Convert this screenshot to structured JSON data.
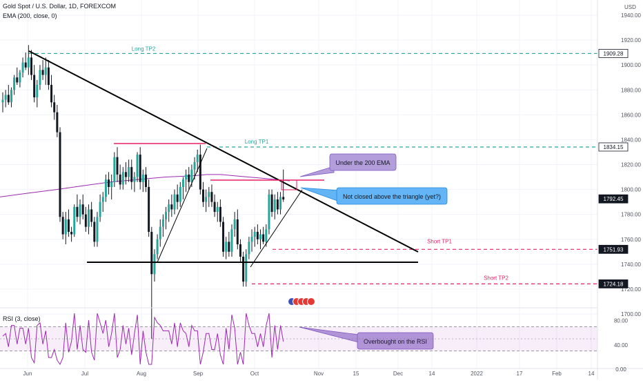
{
  "header": {
    "symbol": "Gold Spot / U.S. Dollar, 1D, FOREXCOM",
    "ema": "EMA (200, close, 0)",
    "rsi": "RSI (3, close)",
    "currency": "USD"
  },
  "colors": {
    "up": "#26a69a",
    "down": "#ef5350",
    "candle": "#131722",
    "ema": "#9c27b0",
    "long": "#26a69a",
    "short": "#e91e63",
    "resistance": "#e91e63",
    "callout_fill": "#b39ddb",
    "callout_blue": "#64b5f6",
    "price_badge": "#131722"
  },
  "chart_data": {
    "type": "candlestick",
    "title": "Gold Spot / U.S. Dollar, 1D, FOREXCOM",
    "price_axis": {
      "ticks": [
        "1940.00",
        "1920.00",
        "1900.00",
        "1880.00",
        "1860.00",
        "1840.00",
        "1820.00",
        "1800.00",
        "1780.00",
        "1760.00",
        "1740.00",
        "1720.00",
        "1700.00"
      ],
      "range": [
        1690,
        1945
      ]
    },
    "time_axis": {
      "labels": [
        "Jun",
        "Jul",
        "Aug",
        "Sep",
        "Oct",
        "Nov",
        "15",
        "Dec",
        "14",
        "2022",
        "17",
        "Feb",
        "14"
      ]
    },
    "price_badges": [
      {
        "label": "1909.28",
        "value": 1909.28,
        "style": "long"
      },
      {
        "label": "1834.15",
        "value": 1834.15,
        "style": "long"
      },
      {
        "label": "1792.45",
        "value": 1792.45,
        "style": "current"
      },
      {
        "label": "1751.93",
        "value": 1751.93,
        "style": "short"
      },
      {
        "label": "1724.18",
        "value": 1724.18,
        "style": "short"
      }
    ],
    "levels": [
      {
        "name": "Long TP2",
        "value": 1909.28
      },
      {
        "name": "Long TP1",
        "value": 1834.15
      },
      {
        "name": "Short TP1",
        "value": 1751.93
      },
      {
        "name": "Short TP2",
        "value": 1724.18
      }
    ],
    "annotations": [
      "Under the 200 EMA",
      "Not closed above the triangle (yet?)",
      "Overbought on the RSI"
    ],
    "rsi_axis": {
      "ticks": [
        "80.00",
        "40.00",
        "0.00"
      ],
      "range": [
        0,
        100
      ],
      "band": [
        30,
        70
      ]
    },
    "ohlc": [
      [
        1870,
        1878,
        1862,
        1872
      ],
      [
        1872,
        1880,
        1866,
        1876
      ],
      [
        1876,
        1884,
        1868,
        1870
      ],
      [
        1870,
        1882,
        1866,
        1880
      ],
      [
        1880,
        1892,
        1876,
        1890
      ],
      [
        1890,
        1898,
        1884,
        1886
      ],
      [
        1886,
        1896,
        1882,
        1894
      ],
      [
        1894,
        1906,
        1890,
        1902
      ],
      [
        1902,
        1910,
        1896,
        1898
      ],
      [
        1898,
        1916,
        1892,
        1906
      ],
      [
        1906,
        1912,
        1888,
        1892
      ],
      [
        1892,
        1900,
        1870,
        1874
      ],
      [
        1874,
        1888,
        1866,
        1884
      ],
      [
        1884,
        1900,
        1880,
        1896
      ],
      [
        1896,
        1904,
        1888,
        1892
      ],
      [
        1892,
        1906,
        1884,
        1898
      ],
      [
        1898,
        1904,
        1880,
        1884
      ],
      [
        1884,
        1892,
        1866,
        1870
      ],
      [
        1870,
        1876,
        1856,
        1862
      ],
      [
        1862,
        1868,
        1842,
        1846
      ],
      [
        1846,
        1850,
        1774,
        1778
      ],
      [
        1778,
        1782,
        1760,
        1764
      ],
      [
        1764,
        1782,
        1756,
        1776
      ],
      [
        1776,
        1784,
        1762,
        1766
      ],
      [
        1766,
        1770,
        1758,
        1764
      ],
      [
        1764,
        1788,
        1762,
        1786
      ],
      [
        1786,
        1796,
        1774,
        1778
      ],
      [
        1778,
        1792,
        1772,
        1788
      ],
      [
        1788,
        1796,
        1776,
        1780
      ],
      [
        1780,
        1786,
        1766,
        1770
      ],
      [
        1770,
        1788,
        1764,
        1784
      ],
      [
        1784,
        1790,
        1770,
        1774
      ],
      [
        1774,
        1778,
        1754,
        1758
      ],
      [
        1758,
        1782,
        1754,
        1778
      ],
      [
        1778,
        1796,
        1774,
        1790
      ],
      [
        1790,
        1798,
        1782,
        1794
      ],
      [
        1794,
        1812,
        1790,
        1808
      ],
      [
        1808,
        1814,
        1796,
        1802
      ],
      [
        1802,
        1812,
        1792,
        1806
      ],
      [
        1806,
        1830,
        1802,
        1826
      ],
      [
        1826,
        1834,
        1806,
        1812
      ],
      [
        1812,
        1820,
        1800,
        1804
      ],
      [
        1804,
        1818,
        1800,
        1814
      ],
      [
        1814,
        1822,
        1804,
        1810
      ],
      [
        1810,
        1824,
        1806,
        1818
      ],
      [
        1818,
        1824,
        1800,
        1806
      ],
      [
        1806,
        1814,
        1798,
        1810
      ],
      [
        1810,
        1830,
        1806,
        1828
      ],
      [
        1828,
        1834,
        1800,
        1806
      ],
      [
        1806,
        1816,
        1798,
        1812
      ],
      [
        1812,
        1818,
        1798,
        1802
      ],
      [
        1802,
        1808,
        1762,
        1766
      ],
      [
        1766,
        1770,
        1680,
        1732
      ],
      [
        1732,
        1752,
        1726,
        1748
      ],
      [
        1748,
        1764,
        1744,
        1760
      ],
      [
        1760,
        1776,
        1754,
        1770
      ],
      [
        1770,
        1780,
        1762,
        1776
      ],
      [
        1776,
        1786,
        1768,
        1782
      ],
      [
        1782,
        1792,
        1774,
        1788
      ],
      [
        1788,
        1796,
        1778,
        1784
      ],
      [
        1784,
        1800,
        1780,
        1796
      ],
      [
        1796,
        1804,
        1784,
        1790
      ],
      [
        1790,
        1806,
        1786,
        1802
      ],
      [
        1802,
        1810,
        1792,
        1808
      ],
      [
        1808,
        1816,
        1798,
        1812
      ],
      [
        1812,
        1818,
        1800,
        1806
      ],
      [
        1806,
        1820,
        1802,
        1816
      ],
      [
        1816,
        1826,
        1808,
        1822
      ],
      [
        1822,
        1832,
        1814,
        1828
      ],
      [
        1828,
        1836,
        1796,
        1800
      ],
      [
        1800,
        1806,
        1786,
        1790
      ],
      [
        1790,
        1800,
        1782,
        1794
      ],
      [
        1794,
        1802,
        1786,
        1798
      ],
      [
        1798,
        1804,
        1786,
        1790
      ],
      [
        1790,
        1796,
        1778,
        1782
      ],
      [
        1782,
        1790,
        1774,
        1786
      ],
      [
        1786,
        1792,
        1770,
        1774
      ],
      [
        1774,
        1778,
        1746,
        1750
      ],
      [
        1750,
        1762,
        1744,
        1758
      ],
      [
        1758,
        1766,
        1746,
        1750
      ],
      [
        1750,
        1772,
        1746,
        1768
      ],
      [
        1768,
        1782,
        1762,
        1776
      ],
      [
        1776,
        1784,
        1752,
        1756
      ],
      [
        1756,
        1760,
        1742,
        1746
      ],
      [
        1746,
        1750,
        1722,
        1726
      ],
      [
        1726,
        1752,
        1722,
        1748
      ],
      [
        1748,
        1762,
        1744,
        1758
      ],
      [
        1758,
        1768,
        1750,
        1762
      ],
      [
        1762,
        1770,
        1754,
        1766
      ],
      [
        1766,
        1772,
        1756,
        1760
      ],
      [
        1760,
        1768,
        1752,
        1764
      ],
      [
        1764,
        1770,
        1756,
        1758
      ],
      [
        1758,
        1772,
        1754,
        1768
      ],
      [
        1768,
        1800,
        1764,
        1796
      ],
      [
        1796,
        1800,
        1778,
        1782
      ],
      [
        1782,
        1796,
        1776,
        1792
      ],
      [
        1792,
        1798,
        1780,
        1784
      ],
      [
        1784,
        1798,
        1780,
        1794
      ],
      [
        1794,
        1816,
        1790,
        1792
      ]
    ],
    "ema200": [
      1794,
      1797,
      1800,
      1803,
      1806,
      1808,
      1810,
      1811,
      1812,
      1812,
      1811,
      1810,
      1809,
      1808,
      1807,
      1806,
      1805,
      1804,
      1803,
      1801,
      1799,
      1797
    ]
  }
}
